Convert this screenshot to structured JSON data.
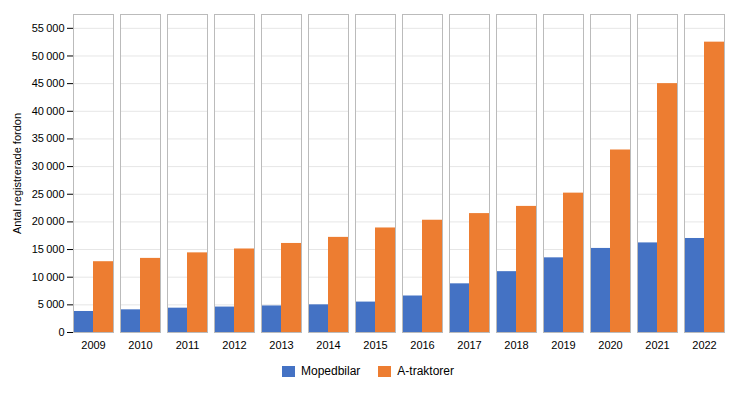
{
  "chart_data": {
    "type": "bar",
    "categories": [
      "2009",
      "2010",
      "2011",
      "2012",
      "2013",
      "2014",
      "2015",
      "2016",
      "2017",
      "2018",
      "2019",
      "2020",
      "2021",
      "2022"
    ],
    "series": [
      {
        "name": "Mopedbilar",
        "color": "#4472C4",
        "values": [
          3800,
          4100,
          4400,
          4600,
          4800,
          5000,
          5500,
          6600,
          8800,
          11000,
          13500,
          15200,
          16200,
          17000
        ]
      },
      {
        "name": "A-traktorer",
        "color": "#ED7D31",
        "values": [
          12800,
          13400,
          14400,
          15100,
          16100,
          17200,
          18900,
          20300,
          21500,
          22800,
          25200,
          33000,
          45000,
          52500
        ]
      }
    ],
    "ylabel": "Antal registrerade fordon",
    "ylim": [
      0,
      57500
    ],
    "yticks": [
      0,
      {
        "value": 5000,
        "label": "5 000"
      },
      {
        "value": 10000,
        "label": "10 000"
      },
      {
        "value": 15000,
        "label": "15 000"
      },
      {
        "value": 20000,
        "label": "20 000"
      },
      {
        "value": 25000,
        "label": "25 000"
      },
      {
        "value": 30000,
        "label": "30 000"
      },
      {
        "value": 35000,
        "label": "35 000"
      },
      {
        "value": 40000,
        "label": "40 000"
      },
      {
        "value": 45000,
        "label": "45 000"
      },
      {
        "value": 50000,
        "label": "50 000"
      },
      {
        "value": 55000,
        "label": "55 000"
      }
    ],
    "grid": true,
    "legend": "bottom"
  }
}
